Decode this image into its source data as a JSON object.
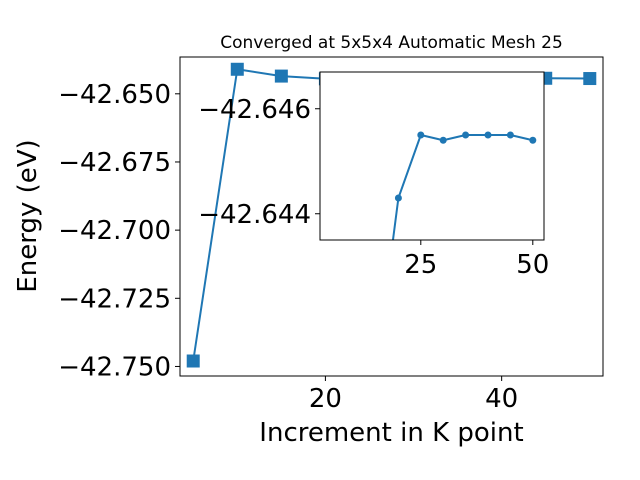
{
  "chart_data": [
    {
      "type": "line",
      "title": "Converged at 5x5x4 Automatic Mesh 25",
      "xlabel": "Increment in K point",
      "ylabel": "Energy (eV)",
      "xlim": [
        3.5,
        51.5
      ],
      "ylim": [
        -42.7535,
        -42.6365
      ],
      "xticks": [
        20,
        40
      ],
      "yticks": [
        -42.65,
        -42.675,
        -42.7,
        -42.725,
        -42.75
      ],
      "ytick_labels": [
        "−42.650",
        "−42.675",
        "−42.700",
        "−42.725",
        "−42.750"
      ],
      "grid": false,
      "marker": "square",
      "color": "#1f77b4",
      "x": [
        5,
        10,
        15,
        20,
        25,
        30,
        35,
        40,
        45,
        50
      ],
      "y": [
        -42.748,
        -42.641,
        -42.6435,
        -42.6445,
        -42.6443,
        -42.6444,
        -42.6443,
        -42.6443,
        -42.6443,
        -42.6444
      ]
    },
    {
      "type": "line",
      "title": "",
      "xlabel": "",
      "ylabel": "",
      "inset": true,
      "xlim": [
        2.5,
        52.5
      ],
      "ylim": [
        -42.6435,
        -42.6467
      ],
      "xticks": [
        25,
        50
      ],
      "yticks": [
        -42.646,
        -42.644
      ],
      "ytick_labels": [
        "−42.646",
        "−42.644"
      ],
      "grid": false,
      "marker": "circle",
      "color": "#1f77b4",
      "x": [
        15,
        20,
        25,
        30,
        35,
        40,
        45,
        50
      ],
      "y": [
        -42.641,
        -42.6443,
        -42.6455,
        -42.6454,
        -42.6455,
        -42.6455,
        -42.6455,
        -42.6454
      ]
    }
  ]
}
